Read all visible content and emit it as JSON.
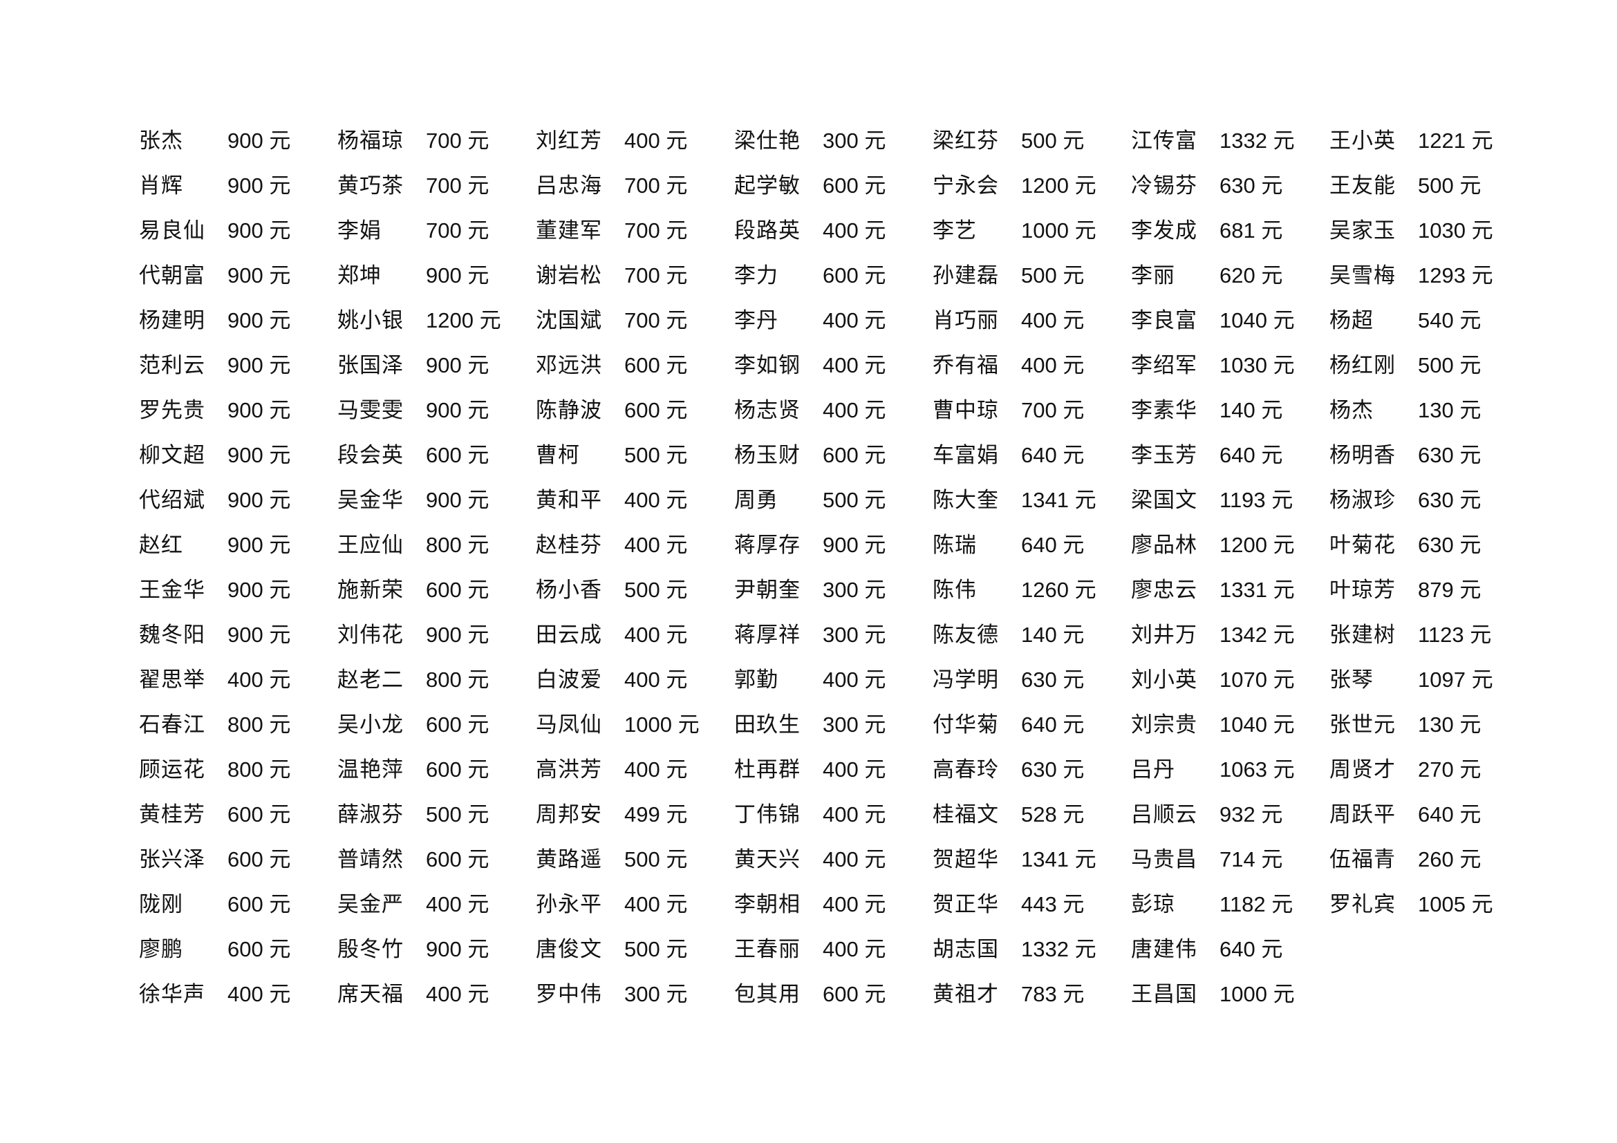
{
  "page": {
    "background_color": "#ffffff",
    "text_color": "#121212"
  },
  "currency_suffix": "元",
  "table": {
    "columns": [
      {
        "entries": [
          {
            "name": "张杰",
            "amount": "900"
          },
          {
            "name": "肖辉",
            "amount": "900"
          },
          {
            "name": "易良仙",
            "amount": "900"
          },
          {
            "name": "代朝富",
            "amount": "900"
          },
          {
            "name": "杨建明",
            "amount": "900"
          },
          {
            "name": "范利云",
            "amount": "900"
          },
          {
            "name": "罗先贵",
            "amount": "900"
          },
          {
            "name": "柳文超",
            "amount": "900"
          },
          {
            "name": "代绍斌",
            "amount": "900"
          },
          {
            "name": "赵红",
            "amount": "900"
          },
          {
            "name": "王金华",
            "amount": "900"
          },
          {
            "name": "魏冬阳",
            "amount": "900"
          },
          {
            "name": "翟思举",
            "amount": "400"
          },
          {
            "name": "石春江",
            "amount": "800"
          },
          {
            "name": "顾运花",
            "amount": "800"
          },
          {
            "name": "黄桂芳",
            "amount": "600"
          },
          {
            "name": "张兴泽",
            "amount": "600"
          },
          {
            "name": "陇刚",
            "amount": "600"
          },
          {
            "name": "廖鹏",
            "amount": "600"
          },
          {
            "name": "徐华声",
            "amount": "400"
          }
        ]
      },
      {
        "entries": [
          {
            "name": "杨福琼",
            "amount": "700"
          },
          {
            "name": "黄巧茶",
            "amount": "700"
          },
          {
            "name": "李娟",
            "amount": "700"
          },
          {
            "name": "郑坤",
            "amount": "900"
          },
          {
            "name": "姚小银",
            "amount": "1200"
          },
          {
            "name": "张国泽",
            "amount": "900"
          },
          {
            "name": "马雯雯",
            "amount": "900"
          },
          {
            "name": "段会英",
            "amount": "600"
          },
          {
            "name": "吴金华",
            "amount": "900"
          },
          {
            "name": "王应仙",
            "amount": "800"
          },
          {
            "name": "施新荣",
            "amount": "600"
          },
          {
            "name": "刘伟花",
            "amount": "900"
          },
          {
            "name": "赵老二",
            "amount": "800"
          },
          {
            "name": "吴小龙",
            "amount": "600"
          },
          {
            "name": "温艳萍",
            "amount": "600"
          },
          {
            "name": "薛淑芬",
            "amount": "500"
          },
          {
            "name": "普靖然",
            "amount": "600"
          },
          {
            "name": "吴金严",
            "amount": "400"
          },
          {
            "name": "殷冬竹",
            "amount": "900"
          },
          {
            "name": "席天福",
            "amount": "400"
          }
        ]
      },
      {
        "entries": [
          {
            "name": "刘红芳",
            "amount": "400"
          },
          {
            "name": "吕忠海",
            "amount": "700"
          },
          {
            "name": "董建军",
            "amount": "700"
          },
          {
            "name": "谢岩松",
            "amount": "700"
          },
          {
            "name": "沈国斌",
            "amount": "700"
          },
          {
            "name": "邓远洪",
            "amount": "600"
          },
          {
            "name": "陈静波",
            "amount": "600"
          },
          {
            "name": "曹柯",
            "amount": "500"
          },
          {
            "name": "黄和平",
            "amount": "400"
          },
          {
            "name": "赵桂芬",
            "amount": "400"
          },
          {
            "name": "杨小香",
            "amount": "500"
          },
          {
            "name": "田云成",
            "amount": "400"
          },
          {
            "name": "白波爱",
            "amount": "400"
          },
          {
            "name": "马凤仙",
            "amount": "1000"
          },
          {
            "name": "高洪芳",
            "amount": "400"
          },
          {
            "name": "周邦安",
            "amount": "499"
          },
          {
            "name": "黄路遥",
            "amount": "500"
          },
          {
            "name": "孙永平",
            "amount": "400"
          },
          {
            "name": "唐俊文",
            "amount": "500"
          },
          {
            "name": "罗中伟",
            "amount": "300"
          }
        ]
      },
      {
        "entries": [
          {
            "name": "梁仕艳",
            "amount": "300"
          },
          {
            "name": "起学敏",
            "amount": "600"
          },
          {
            "name": "段路英",
            "amount": "400"
          },
          {
            "name": "李力",
            "amount": "600"
          },
          {
            "name": "李丹",
            "amount": "400"
          },
          {
            "name": "李如钢",
            "amount": "400"
          },
          {
            "name": "杨志贤",
            "amount": "400"
          },
          {
            "name": "杨玉财",
            "amount": "600"
          },
          {
            "name": "周勇",
            "amount": "500"
          },
          {
            "name": "蒋厚存",
            "amount": "900"
          },
          {
            "name": "尹朝奎",
            "amount": "300"
          },
          {
            "name": "蒋厚祥",
            "amount": "300"
          },
          {
            "name": "郭勤",
            "amount": "400"
          },
          {
            "name": "田玖生",
            "amount": "300"
          },
          {
            "name": "杜再群",
            "amount": "400"
          },
          {
            "name": "丁伟锦",
            "amount": "400"
          },
          {
            "name": "黄天兴",
            "amount": "400"
          },
          {
            "name": "李朝相",
            "amount": "400"
          },
          {
            "name": "王春丽",
            "amount": "400"
          },
          {
            "name": "包其用",
            "amount": "600"
          }
        ]
      },
      {
        "entries": [
          {
            "name": "梁红芬",
            "amount": "500"
          },
          {
            "name": "宁永会",
            "amount": "1200"
          },
          {
            "name": "李艺",
            "amount": "1000"
          },
          {
            "name": "孙建磊",
            "amount": "500"
          },
          {
            "name": "肖巧丽",
            "amount": "400"
          },
          {
            "name": "乔有福",
            "amount": "400"
          },
          {
            "name": "曹中琼",
            "amount": "700"
          },
          {
            "name": "车富娟",
            "amount": "640"
          },
          {
            "name": "陈大奎",
            "amount": "1341"
          },
          {
            "name": "陈瑞",
            "amount": "640"
          },
          {
            "name": "陈伟",
            "amount": "1260"
          },
          {
            "name": "陈友德",
            "amount": "140"
          },
          {
            "name": "冯学明",
            "amount": "630"
          },
          {
            "name": "付华菊",
            "amount": "640"
          },
          {
            "name": "高春玲",
            "amount": "630"
          },
          {
            "name": "桂福文",
            "amount": "528"
          },
          {
            "name": "贺超华",
            "amount": "1341"
          },
          {
            "name": "贺正华",
            "amount": "443"
          },
          {
            "name": "胡志国",
            "amount": "1332"
          },
          {
            "name": "黄祖才",
            "amount": "783"
          }
        ]
      },
      {
        "entries": [
          {
            "name": "江传富",
            "amount": "1332"
          },
          {
            "name": "冷锡芬",
            "amount": "630"
          },
          {
            "name": "李发成",
            "amount": "681"
          },
          {
            "name": "李丽",
            "amount": "620"
          },
          {
            "name": "李良富",
            "amount": "1040"
          },
          {
            "name": "李绍军",
            "amount": "1030"
          },
          {
            "name": "李素华",
            "amount": "140"
          },
          {
            "name": "李玉芳",
            "amount": "640"
          },
          {
            "name": "梁国文",
            "amount": "1193"
          },
          {
            "name": "廖品林",
            "amount": "1200"
          },
          {
            "name": "廖忠云",
            "amount": "1331"
          },
          {
            "name": "刘井万",
            "amount": "1342"
          },
          {
            "name": "刘小英",
            "amount": "1070"
          },
          {
            "name": "刘宗贵",
            "amount": "1040"
          },
          {
            "name": "吕丹",
            "amount": "1063"
          },
          {
            "name": "吕顺云",
            "amount": "932"
          },
          {
            "name": "马贵昌",
            "amount": "714"
          },
          {
            "name": "彭琼",
            "amount": "1182"
          },
          {
            "name": "唐建伟",
            "amount": "640"
          },
          {
            "name": "王昌国",
            "amount": "1000"
          }
        ]
      },
      {
        "entries": [
          {
            "name": "王小英",
            "amount": "1221"
          },
          {
            "name": "王友能",
            "amount": "500"
          },
          {
            "name": "吴家玉",
            "amount": "1030"
          },
          {
            "name": "吴雪梅",
            "amount": "1293"
          },
          {
            "name": "杨超",
            "amount": "540"
          },
          {
            "name": "杨红刚",
            "amount": "500"
          },
          {
            "name": "杨杰",
            "amount": "130"
          },
          {
            "name": "杨明香",
            "amount": "630"
          },
          {
            "name": "杨淑珍",
            "amount": "630"
          },
          {
            "name": "叶菊花",
            "amount": "630"
          },
          {
            "name": "叶琼芳",
            "amount": "879"
          },
          {
            "name": "张建树",
            "amount": "1123"
          },
          {
            "name": "张琴",
            "amount": "1097"
          },
          {
            "name": "张世元",
            "amount": "130"
          },
          {
            "name": "周贤才",
            "amount": "270"
          },
          {
            "name": "周跃平",
            "amount": "640"
          },
          {
            "name": "伍福青",
            "amount": "260"
          },
          {
            "name": "罗礼宾",
            "amount": "1005"
          }
        ]
      }
    ]
  }
}
